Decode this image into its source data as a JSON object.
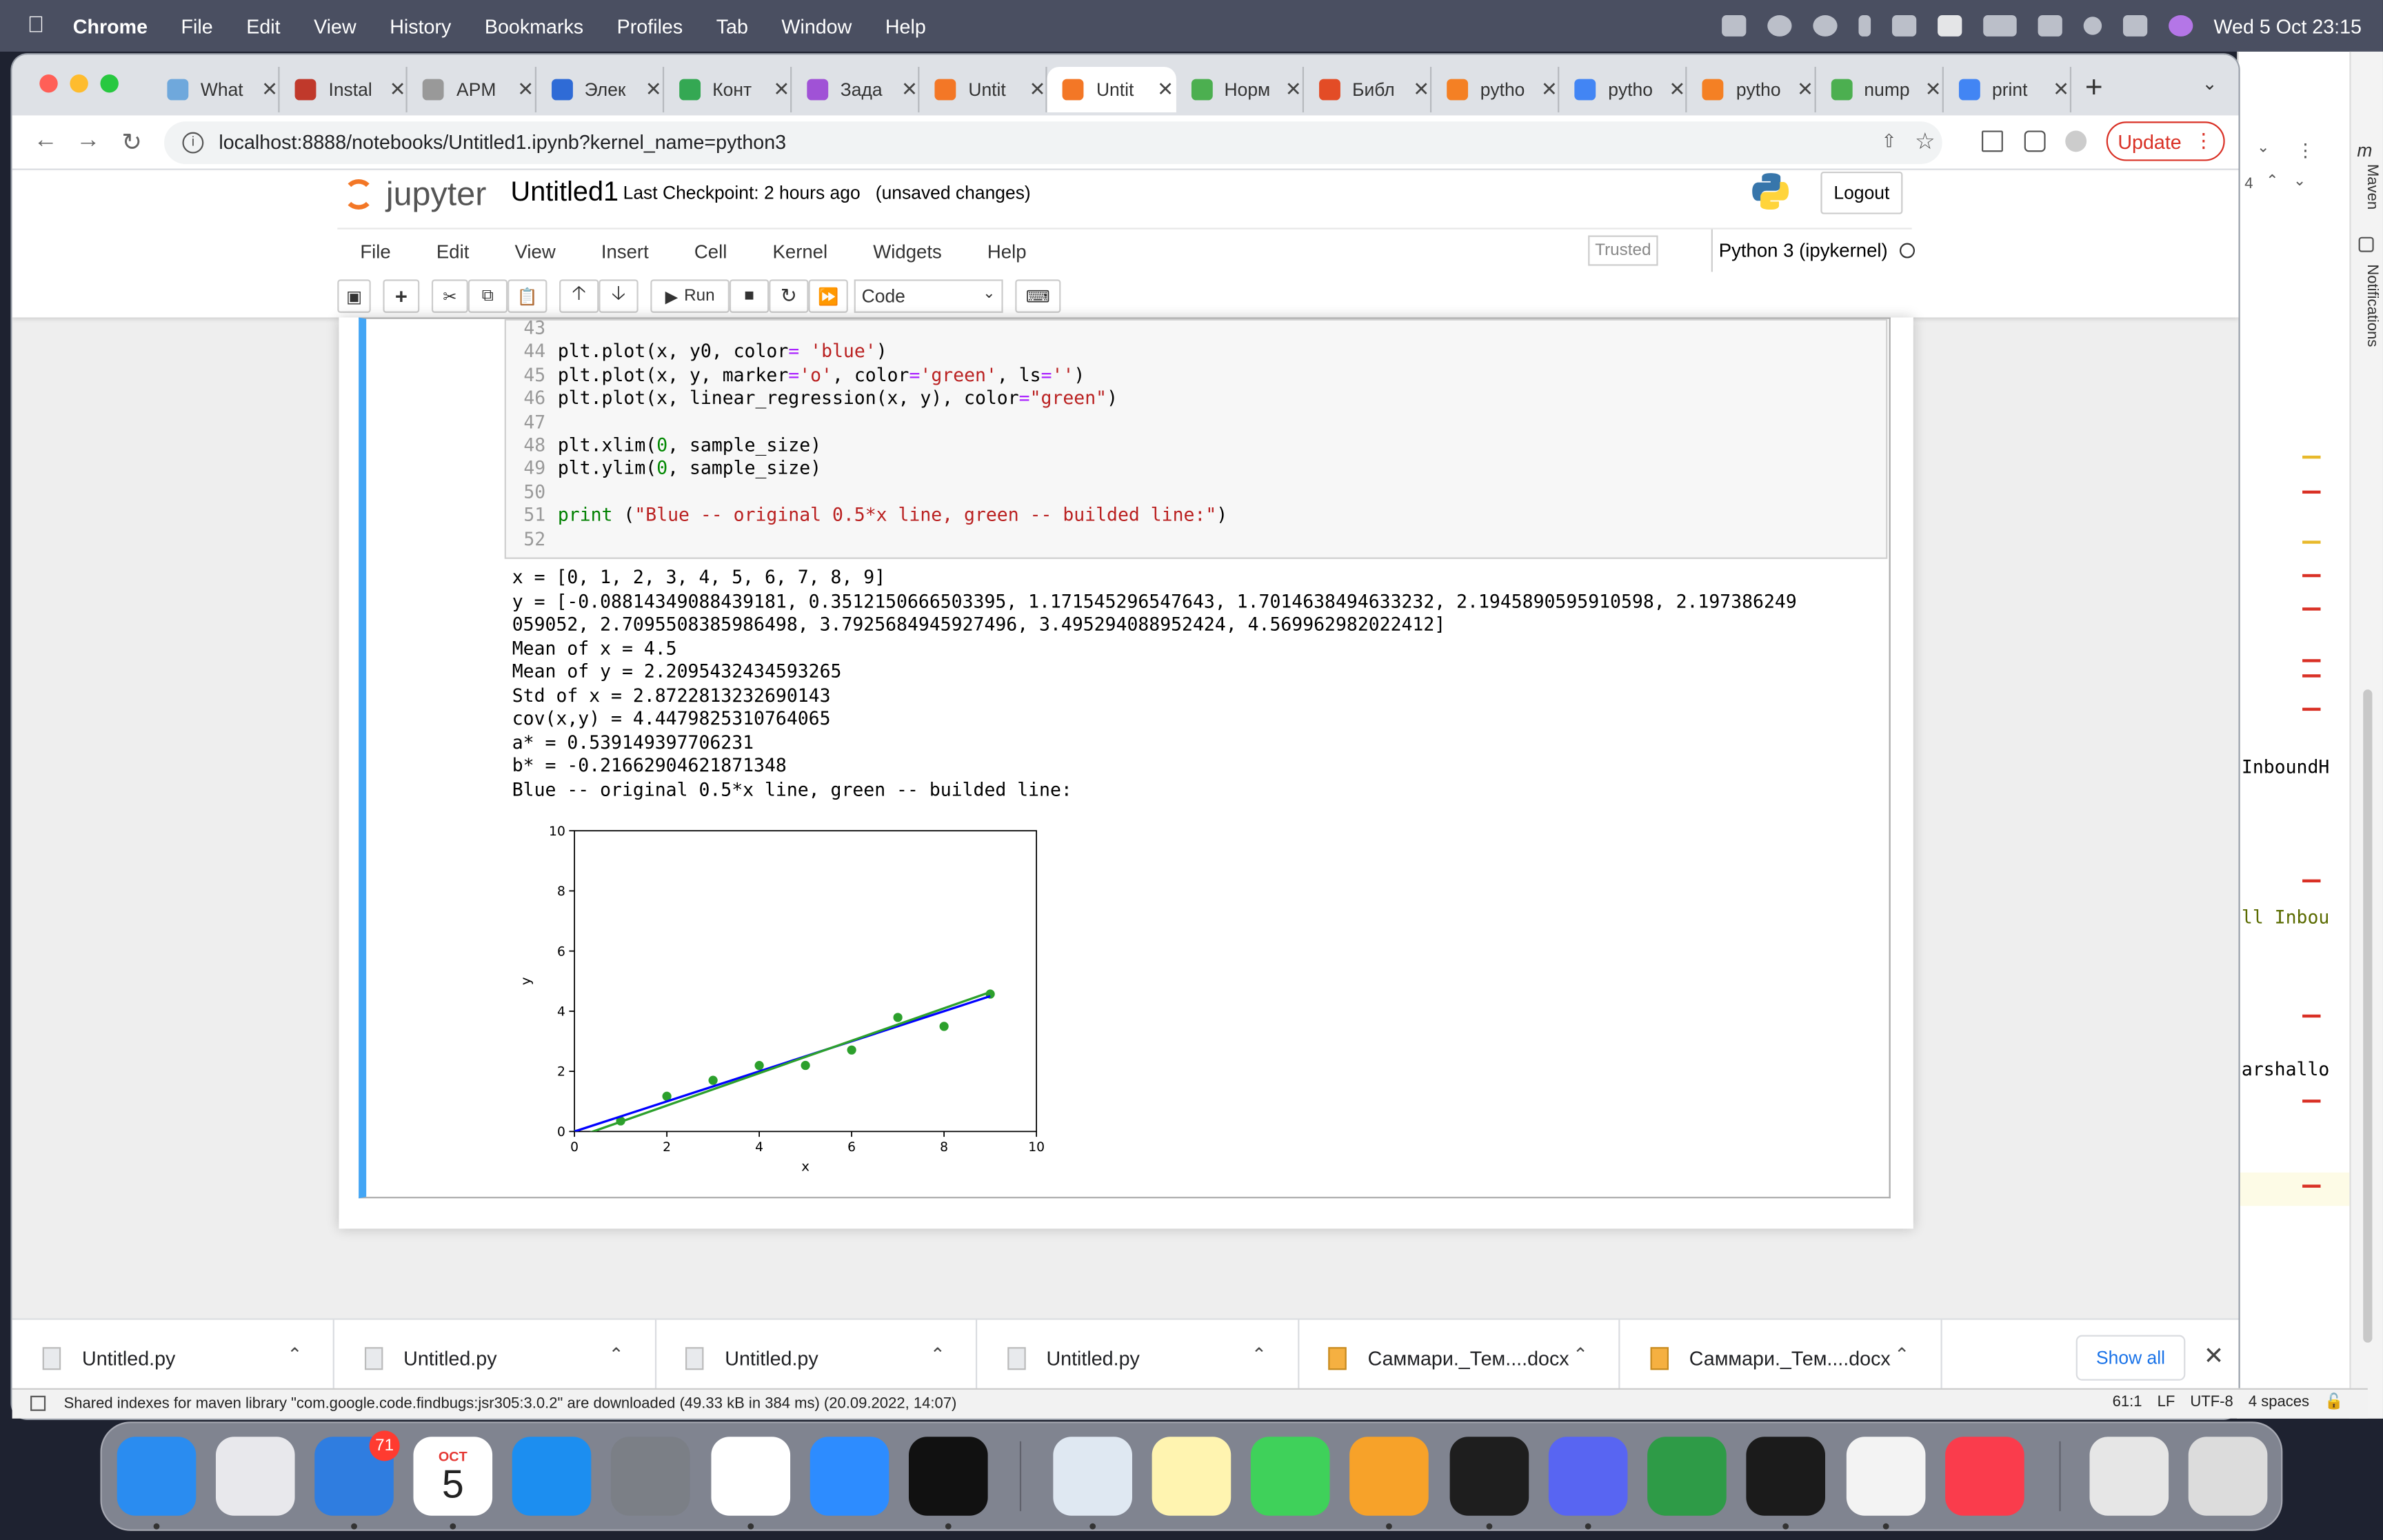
{
  "menubar": {
    "items": [
      "Chrome",
      "File",
      "Edit",
      "View",
      "History",
      "Bookmarks",
      "Profiles",
      "Tab",
      "Window",
      "Help"
    ],
    "datetime": "Wed 5 Oct  23:15"
  },
  "tabs": [
    {
      "label": "What",
      "color": "#6fa8dc"
    },
    {
      "label": "Instal",
      "color": "#c0392b"
    },
    {
      "label": "APM",
      "color": "#999999"
    },
    {
      "label": "Элек",
      "color": "#2f6bd6"
    },
    {
      "label": "Конт",
      "color": "#34a853"
    },
    {
      "label": "Зада",
      "color": "#a052d6"
    },
    {
      "label": "Untit",
      "color": "#f37726"
    },
    {
      "label": "Untit",
      "color": "#f37726",
      "active": true
    },
    {
      "label": "Норм",
      "color": "#4caf50"
    },
    {
      "label": "Библ",
      "color": "#e34c26"
    },
    {
      "label": "pytho",
      "color": "#f48024"
    },
    {
      "label": "pytho",
      "color": "#4285f4"
    },
    {
      "label": "pytho",
      "color": "#f48024"
    },
    {
      "label": "nump",
      "color": "#4caf50"
    },
    {
      "label": "print",
      "color": "#4285f4"
    }
  ],
  "address": {
    "url": "localhost:8888/notebooks/Untitled1.ipynb?kernel_name=python3",
    "update_label": "Update"
  },
  "jupyter": {
    "logo_text": "jupyter",
    "title": "Untitled1",
    "checkpoint": "Last Checkpoint: 2 hours ago",
    "unsaved": "(unsaved changes)",
    "logout": "Logout",
    "menu": [
      "File",
      "Edit",
      "View",
      "Insert",
      "Cell",
      "Kernel",
      "Widgets",
      "Help"
    ],
    "trusted": "Trusted",
    "kernel": "Python 3 (ipykernel)",
    "run_label": "Run",
    "cell_type": "Code"
  },
  "code": {
    "lines": [
      {
        "n": "43",
        "parts": []
      },
      {
        "n": "44",
        "parts": [
          [
            "t",
            "plt.plot(x, y0, color"
          ],
          [
            "o",
            "="
          ],
          [
            "t",
            " "
          ],
          [
            "s",
            "'blue'"
          ],
          [
            "t",
            ")"
          ]
        ]
      },
      {
        "n": "45",
        "parts": [
          [
            "t",
            "plt.plot(x, y, marker"
          ],
          [
            "o",
            "="
          ],
          [
            "s",
            "'o'"
          ],
          [
            "t",
            ", color"
          ],
          [
            "o",
            "="
          ],
          [
            "s",
            "'green'"
          ],
          [
            "t",
            ", ls"
          ],
          [
            "o",
            "="
          ],
          [
            "s",
            "''"
          ],
          [
            "t",
            ")"
          ]
        ]
      },
      {
        "n": "46",
        "parts": [
          [
            "t",
            "plt.plot(x, linear_regression(x, y), color"
          ],
          [
            "o",
            "="
          ],
          [
            "s",
            "\"green\""
          ],
          [
            "t",
            ")"
          ]
        ]
      },
      {
        "n": "47",
        "parts": []
      },
      {
        "n": "48",
        "parts": [
          [
            "t",
            "plt.xlim("
          ],
          [
            "n",
            "0"
          ],
          [
            "t",
            ", sample_size)"
          ]
        ]
      },
      {
        "n": "49",
        "parts": [
          [
            "t",
            "plt.ylim("
          ],
          [
            "n",
            "0"
          ],
          [
            "t",
            ", sample_size)"
          ]
        ]
      },
      {
        "n": "50",
        "parts": []
      },
      {
        "n": "51",
        "parts": [
          [
            "p",
            "print"
          ],
          [
            "t",
            " ("
          ],
          [
            "s",
            "\"Blue -- original 0.5*x line, green -- builded line:\""
          ],
          [
            "t",
            ")"
          ]
        ]
      },
      {
        "n": "52",
        "parts": []
      }
    ]
  },
  "output": {
    "lines": [
      "x = [0, 1, 2, 3, 4, 5, 6, 7, 8, 9]",
      "y = [-0.08814349088439181, 0.3512150666503395, 1.171545296547643, 1.7014638494633232, 2.1945890595910598, 2.197386249",
      "059052, 2.7095508385986498, 3.7925684945927496, 3.495294088952424, 4.569962982022412]",
      "Mean of x = 4.5",
      "Mean of y = 2.2095432434593265",
      "Std of x = 2.8722813232690143",
      "cov(x,y) = 4.4479825310764065",
      "a* = 0.539149397706231",
      "b* = -0.21662904621871348",
      "Blue -- original 0.5*x line, green -- builded line:"
    ]
  },
  "chart_data": {
    "type": "scatter",
    "xlabel": "x",
    "ylabel": "y",
    "xlim": [
      0,
      10
    ],
    "ylim": [
      0,
      10
    ],
    "xticks": [
      0,
      2,
      4,
      6,
      8,
      10
    ],
    "yticks": [
      0,
      2,
      4,
      6,
      8,
      10
    ],
    "series": [
      {
        "kind": "scatter",
        "color": "#2ca02c",
        "x": [
          0,
          1,
          2,
          3,
          4,
          5,
          6,
          7,
          8,
          9
        ],
        "y": [
          -0.08814349088439181,
          0.3512150666503395,
          1.171545296547643,
          1.7014638494633232,
          2.1945890595910598,
          2.197386249059052,
          2.7095508385986498,
          3.7925684945927496,
          3.495294088952424,
          4.569962982022412
        ]
      },
      {
        "kind": "line",
        "color": "#0000ff",
        "x": [
          0,
          9
        ],
        "y": [
          0,
          4.5
        ]
      },
      {
        "kind": "line",
        "color": "#2ca02c",
        "x": [
          0,
          9
        ],
        "y": [
          -0.21662904621871348,
          4.635715532137366
        ]
      }
    ]
  },
  "downloads": {
    "items": [
      {
        "label": "Untitled.py",
        "type": "py"
      },
      {
        "label": "Untitled.py",
        "type": "py"
      },
      {
        "label": "Untitled.py",
        "type": "py"
      },
      {
        "label": "Untitled.py",
        "type": "py"
      },
      {
        "label": "Саммари._Тем....docx",
        "type": "docx"
      },
      {
        "label": "Саммари._Тем....docx",
        "type": "docx"
      }
    ],
    "show_all": "Show all"
  },
  "ide": {
    "status_message": "Shared indexes for maven library \"com.google.code.findbugs:jsr305:3.0.2\" are downloaded (49.33 kB in 384 ms) (20.09.2022, 14:07)",
    "position": "61:1",
    "line_sep": "LF",
    "encoding": "UTF-8",
    "indent": "4 spaces",
    "side_labels": [
      "Maven",
      "Notifications"
    ],
    "code_fragments": [
      "InboundH",
      "ll Inbou",
      "arshallo"
    ],
    "line_badge": "4"
  },
  "dock": {
    "mail_badge": "71",
    "calendar_month": "OCT",
    "calendar_day": "5",
    "apps": [
      {
        "name": "finder",
        "color": "#2a8cf0"
      },
      {
        "name": "launchpad",
        "color": "#e8e8ec"
      },
      {
        "name": "mail",
        "color": "#2f7de0"
      },
      {
        "name": "calendar",
        "color": "#ffffff"
      },
      {
        "name": "app-store",
        "color": "#1c8ef0"
      },
      {
        "name": "system-preferences",
        "color": "#7b7f86"
      },
      {
        "name": "chrome",
        "color": "#ffffff"
      },
      {
        "name": "zoom",
        "color": "#2d8cff"
      },
      {
        "name": "intellij",
        "color": "#111111"
      },
      {
        "name": "preview",
        "color": "#dfe8f2"
      },
      {
        "name": "notes",
        "color": "#fff4b0"
      },
      {
        "name": "messages",
        "color": "#3fd15a"
      },
      {
        "name": "pages",
        "color": "#f7a229"
      },
      {
        "name": "activity-monitor",
        "color": "#1e1e1e"
      },
      {
        "name": "discord",
        "color": "#5865f2"
      },
      {
        "name": "sync",
        "color": "#2e9b47"
      },
      {
        "name": "terminal",
        "color": "#1b1b1b"
      },
      {
        "name": "textedit",
        "color": "#f3f3f3"
      },
      {
        "name": "music",
        "color": "#fa3c4c"
      },
      {
        "name": "music-doc",
        "color": "#e6e6e6"
      },
      {
        "name": "trash",
        "color": "#dcdcdc"
      }
    ]
  }
}
